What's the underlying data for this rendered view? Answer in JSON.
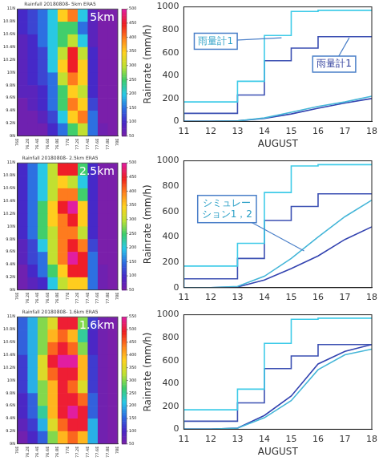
{
  "chart_data": [
    {
      "type": "heatmap",
      "title": "Rainfall 20180808- 5km ERA5",
      "annotations": [
        {
          "text": "5km"
        }
      ],
      "x": [
        76.1,
        76.3,
        76.5,
        76.7,
        76.9,
        77.1,
        77.3,
        77.5,
        77.7,
        77.9
      ],
      "y": [
        10.9,
        10.7,
        10.5,
        10.3,
        10.1,
        9.9,
        9.7,
        9.5,
        9.3,
        9.1
      ],
      "cells": [
        [
          100,
          120,
          150,
          200,
          350,
          400,
          200,
          80,
          50,
          50
        ],
        [
          100,
          120,
          150,
          200,
          250,
          250,
          150,
          80,
          50,
          50
        ],
        [
          80,
          100,
          150,
          200,
          250,
          300,
          200,
          80,
          50,
          50
        ],
        [
          80,
          100,
          120,
          200,
          300,
          450,
          300,
          100,
          50,
          50
        ],
        [
          80,
          100,
          120,
          200,
          350,
          450,
          350,
          100,
          50,
          50
        ],
        [
          80,
          100,
          120,
          150,
          300,
          400,
          350,
          100,
          50,
          50
        ],
        [
          80,
          80,
          100,
          150,
          250,
          350,
          300,
          100,
          50,
          50
        ],
        [
          60,
          80,
          100,
          150,
          250,
          400,
          350,
          120,
          50,
          50
        ],
        [
          60,
          60,
          80,
          120,
          200,
          350,
          400,
          150,
          50,
          50
        ],
        [
          60,
          60,
          60,
          100,
          150,
          250,
          300,
          150,
          60,
          50
        ]
      ],
      "xlim": [
        76,
        78
      ],
      "ylim": [
        9,
        11
      ],
      "xticks": [
        {
          "value": 76,
          "label": "76E"
        },
        {
          "value": 76.2,
          "label": "76.2E"
        },
        {
          "value": 76.4,
          "label": "76.4E"
        },
        {
          "value": 76.6,
          "label": "76.6E"
        },
        {
          "value": 76.8,
          "label": "76.8E"
        },
        {
          "value": 77,
          "label": "77E"
        },
        {
          "value": 77.2,
          "label": "77.2E"
        },
        {
          "value": 77.4,
          "label": "77.4E"
        },
        {
          "value": 77.6,
          "label": "77.6E"
        },
        {
          "value": 77.8,
          "label": "77.8E"
        },
        {
          "value": 78,
          "label": "78E"
        }
      ],
      "yticks": [
        {
          "value": 9,
          "label": "9N"
        },
        {
          "value": 9.2,
          "label": "9.2N"
        },
        {
          "value": 9.4,
          "label": "9.4N"
        },
        {
          "value": 9.6,
          "label": "9.6N"
        },
        {
          "value": 9.8,
          "label": "9.8N"
        },
        {
          "value": 10,
          "label": "10N"
        },
        {
          "value": 10.2,
          "label": "10.2N"
        },
        {
          "value": 10.4,
          "label": "10.4N"
        },
        {
          "value": 10.6,
          "label": "10.6N"
        },
        {
          "value": 10.8,
          "label": "10.8N"
        },
        {
          "value": 11,
          "label": "11N"
        }
      ],
      "colorbar_range": [
        50,
        500
      ],
      "colorbar_ticks": [
        50,
        100,
        150,
        200,
        250,
        300,
        350,
        400,
        450,
        500
      ],
      "grid": false
    },
    {
      "type": "heatmap",
      "title": "Rainfall 20180808- 2.5km ERA5",
      "annotations": [
        {
          "text": "2.5km"
        }
      ],
      "x": [
        76.1,
        76.3,
        76.5,
        76.7,
        76.9,
        77.1,
        77.3,
        77.5,
        77.7,
        77.9
      ],
      "y": [
        10.9,
        10.7,
        10.5,
        10.3,
        10.1,
        9.9,
        9.7,
        9.5,
        9.3,
        9.1
      ],
      "cells": [
        [
          100,
          150,
          200,
          300,
          450,
          450,
          250,
          100,
          50,
          50
        ],
        [
          100,
          150,
          200,
          300,
          350,
          300,
          200,
          100,
          50,
          50
        ],
        [
          100,
          150,
          200,
          300,
          400,
          400,
          250,
          100,
          50,
          50
        ],
        [
          100,
          150,
          250,
          350,
          450,
          500,
          350,
          100,
          50,
          50
        ],
        [
          100,
          150,
          250,
          350,
          400,
          450,
          350,
          100,
          50,
          50
        ],
        [
          100,
          150,
          250,
          300,
          400,
          400,
          300,
          100,
          50,
          50
        ],
        [
          80,
          120,
          200,
          300,
          400,
          450,
          400,
          120,
          50,
          50
        ],
        [
          80,
          120,
          150,
          300,
          400,
          500,
          450,
          150,
          50,
          50
        ],
        [
          60,
          100,
          150,
          250,
          350,
          450,
          450,
          150,
          60,
          50
        ],
        [
          60,
          80,
          100,
          200,
          300,
          350,
          350,
          150,
          60,
          50
        ]
      ],
      "xlim": [
        76,
        78
      ],
      "ylim": [
        9,
        11
      ],
      "xticks": [
        {
          "value": 76,
          "label": "76E"
        },
        {
          "value": 76.2,
          "label": "76.2E"
        },
        {
          "value": 76.4,
          "label": "76.4E"
        },
        {
          "value": 76.6,
          "label": "76.6E"
        },
        {
          "value": 76.8,
          "label": "76.8E"
        },
        {
          "value": 77,
          "label": "77E"
        },
        {
          "value": 77.2,
          "label": "77.2E"
        },
        {
          "value": 77.4,
          "label": "77.4E"
        },
        {
          "value": 77.6,
          "label": "77.6E"
        },
        {
          "value": 77.8,
          "label": "77.8E"
        },
        {
          "value": 78,
          "label": "78E"
        }
      ],
      "yticks": [
        {
          "value": 9,
          "label": "9N"
        },
        {
          "value": 9.2,
          "label": "9.2N"
        },
        {
          "value": 9.4,
          "label": "9.4N"
        },
        {
          "value": 9.6,
          "label": "9.6N"
        },
        {
          "value": 9.8,
          "label": "9.8N"
        },
        {
          "value": 10,
          "label": "10N"
        },
        {
          "value": 10.2,
          "label": "10.2N"
        },
        {
          "value": 10.4,
          "label": "10.4N"
        },
        {
          "value": 10.6,
          "label": "10.6N"
        },
        {
          "value": 10.8,
          "label": "10.8N"
        },
        {
          "value": 11,
          "label": "11N"
        }
      ],
      "colorbar_range": [
        50,
        500
      ],
      "colorbar_ticks": [
        50,
        100,
        150,
        200,
        250,
        300,
        350,
        400,
        450,
        500
      ],
      "grid": false
    },
    {
      "type": "heatmap",
      "title": "Rainfall 20180808- 1.6km ERA5",
      "annotations": [
        {
          "text": "1.6km"
        }
      ],
      "x": [
        76.1,
        76.3,
        76.5,
        76.7,
        76.9,
        77.1,
        77.3,
        77.5,
        77.7,
        77.9
      ],
      "y": [
        10.9,
        10.7,
        10.5,
        10.3,
        10.1,
        9.9,
        9.7,
        9.5,
        9.3,
        9.1
      ],
      "cells": [
        [
          150,
          200,
          300,
          350,
          500,
          500,
          300,
          120,
          60,
          50
        ],
        [
          150,
          200,
          300,
          400,
          450,
          400,
          250,
          100,
          60,
          50
        ],
        [
          150,
          200,
          300,
          450,
          500,
          450,
          300,
          100,
          60,
          50
        ],
        [
          120,
          200,
          350,
          500,
          550,
          550,
          400,
          120,
          60,
          50
        ],
        [
          120,
          200,
          350,
          450,
          500,
          500,
          400,
          120,
          60,
          50
        ],
        [
          120,
          200,
          300,
          400,
          500,
          450,
          350,
          120,
          60,
          50
        ],
        [
          100,
          150,
          300,
          400,
          500,
          500,
          450,
          150,
          60,
          50
        ],
        [
          100,
          150,
          250,
          400,
          500,
          550,
          500,
          150,
          60,
          50
        ],
        [
          80,
          120,
          200,
          350,
          450,
          500,
          500,
          200,
          60,
          50
        ],
        [
          60,
          100,
          150,
          300,
          400,
          450,
          400,
          200,
          60,
          50
        ]
      ],
      "xlim": [
        76,
        78
      ],
      "ylim": [
        9,
        11
      ],
      "xticks": [
        {
          "value": 76,
          "label": "76E"
        },
        {
          "value": 76.2,
          "label": "76.2E"
        },
        {
          "value": 76.4,
          "label": "76.4E"
        },
        {
          "value": 76.6,
          "label": "76.6E"
        },
        {
          "value": 76.8,
          "label": "76.8E"
        },
        {
          "value": 77,
          "label": "77E"
        },
        {
          "value": 77.2,
          "label": "77.2E"
        },
        {
          "value": 77.4,
          "label": "77.4E"
        },
        {
          "value": 77.6,
          "label": "77.6E"
        },
        {
          "value": 77.8,
          "label": "77.8E"
        },
        {
          "value": 78,
          "label": "78E"
        }
      ],
      "yticks": [
        {
          "value": 9,
          "label": "9N"
        },
        {
          "value": 9.2,
          "label": "9.2N"
        },
        {
          "value": 9.4,
          "label": "9.4N"
        },
        {
          "value": 9.6,
          "label": "9.6N"
        },
        {
          "value": 9.8,
          "label": "9.8N"
        },
        {
          "value": 10,
          "label": "10N"
        },
        {
          "value": 10.2,
          "label": "10.2N"
        },
        {
          "value": 10.4,
          "label": "10.4N"
        },
        {
          "value": 10.6,
          "label": "10.6N"
        },
        {
          "value": 10.8,
          "label": "10.8N"
        },
        {
          "value": 11,
          "label": "11N"
        }
      ],
      "colorbar_range": [
        50,
        550
      ],
      "colorbar_ticks": [
        50,
        100,
        150,
        200,
        250,
        300,
        350,
        400,
        450,
        500,
        550
      ],
      "grid": false
    },
    {
      "type": "line",
      "x_label": "AUGUST",
      "y_label": "Rainrate (mm/h)",
      "xlim": [
        11,
        18
      ],
      "xticks": [
        11,
        12,
        13,
        14,
        15,
        16,
        17,
        18
      ],
      "ylim": [
        0,
        1000
      ],
      "yticks": [
        0,
        200,
        400,
        600,
        800,
        1000
      ],
      "grid": false,
      "annotations": [
        {
          "text": "雨量計1"
        },
        {
          "text": "雨量計1"
        }
      ],
      "series": [
        {
          "color": "#3fcbe8",
          "line_style": "steps",
          "x": [
            11,
            13,
            14,
            15,
            16,
            17,
            18
          ],
          "values": [
            0,
            170,
            350,
            750,
            960,
            970,
            970
          ]
        },
        {
          "color": "#3b4fb2",
          "line_style": "steps",
          "x": [
            11,
            13,
            14,
            15,
            16,
            17,
            18
          ],
          "values": [
            0,
            70,
            230,
            530,
            640,
            740,
            740
          ]
        },
        {
          "color": "#45b6d8",
          "line_style": "solid",
          "x": [
            11,
            12,
            13,
            14,
            15,
            16,
            17,
            18
          ],
          "values": [
            0,
            0,
            5,
            30,
            80,
            130,
            170,
            220
          ]
        },
        {
          "color": "#3343b0",
          "line_style": "solid",
          "x": [
            11,
            12,
            13,
            14,
            15,
            16,
            17,
            18
          ],
          "values": [
            0,
            0,
            5,
            25,
            65,
            115,
            160,
            200
          ]
        }
      ]
    },
    {
      "type": "line",
      "y_label": "Rainrate (mm/h)",
      "xlim": [
        11,
        18
      ],
      "xticks": [
        11,
        12,
        13,
        14,
        15,
        16,
        17,
        18
      ],
      "ylim": [
        0,
        1000
      ],
      "yticks": [
        0,
        200,
        400,
        600,
        800,
        1000
      ],
      "grid": false,
      "annotations": [
        {
          "text": "シミュレーション1，2"
        }
      ],
      "series": [
        {
          "color": "#3fcbe8",
          "line_style": "steps",
          "x": [
            11,
            13,
            14,
            15,
            16,
            17,
            18
          ],
          "values": [
            0,
            170,
            350,
            750,
            960,
            970,
            970
          ]
        },
        {
          "color": "#3b4fb2",
          "line_style": "steps",
          "x": [
            11,
            13,
            14,
            15,
            16,
            17,
            18
          ],
          "values": [
            0,
            70,
            230,
            530,
            640,
            740,
            740
          ]
        },
        {
          "color": "#45b6d8",
          "line_style": "solid",
          "x": [
            11,
            12,
            13,
            14,
            15,
            16,
            17,
            18
          ],
          "values": [
            0,
            0,
            10,
            90,
            230,
            400,
            560,
            690
          ]
        },
        {
          "color": "#3343b0",
          "line_style": "solid",
          "x": [
            11,
            12,
            13,
            14,
            15,
            16,
            17,
            18
          ],
          "values": [
            0,
            0,
            5,
            60,
            150,
            250,
            380,
            480
          ]
        }
      ]
    },
    {
      "type": "line",
      "x_label": "AUGUST",
      "y_label": "Rainrate (mm/h)",
      "xlim": [
        11,
        18
      ],
      "xticks": [
        11,
        12,
        13,
        14,
        15,
        16,
        17,
        18
      ],
      "ylim": [
        0,
        1000
      ],
      "yticks": [
        0,
        200,
        400,
        600,
        800,
        1000
      ],
      "grid": false,
      "series": [
        {
          "color": "#3fcbe8",
          "line_style": "steps",
          "x": [
            11,
            13,
            14,
            15,
            16,
            17,
            18
          ],
          "values": [
            0,
            170,
            350,
            750,
            960,
            970,
            970
          ]
        },
        {
          "color": "#3b4fb2",
          "line_style": "steps",
          "x": [
            11,
            13,
            14,
            15,
            16,
            17,
            18
          ],
          "values": [
            0,
            70,
            230,
            530,
            640,
            740,
            740
          ]
        },
        {
          "color": "#45b6d8",
          "line_style": "solid",
          "x": [
            11,
            12,
            13,
            14,
            15,
            16,
            17,
            18
          ],
          "values": [
            0,
            0,
            10,
            100,
            250,
            520,
            650,
            700
          ]
        },
        {
          "color": "#3343b0",
          "line_style": "solid",
          "x": [
            11,
            12,
            13,
            14,
            15,
            16,
            17,
            18
          ],
          "values": [
            0,
            0,
            10,
            120,
            290,
            570,
            680,
            740
          ]
        }
      ]
    }
  ]
}
